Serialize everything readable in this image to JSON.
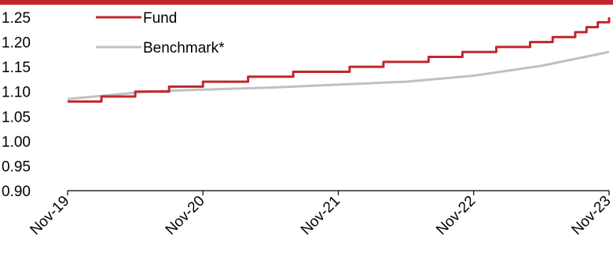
{
  "chart_data": {
    "type": "line",
    "title": "",
    "xlabel": "",
    "ylabel": "",
    "ylim": [
      0.9,
      1.25
    ],
    "xlim": [
      "2019-11",
      "2023-11"
    ],
    "y_ticks": [
      "0.90",
      "0.95",
      "1.00",
      "1.05",
      "1.10",
      "1.15",
      "1.20",
      "1.25"
    ],
    "x_ticks": [
      {
        "date": "2019-11",
        "label": "Nov-19"
      },
      {
        "date": "2020-11",
        "label": "Nov-20"
      },
      {
        "date": "2021-11",
        "label": "Nov-21"
      },
      {
        "date": "2022-11",
        "label": "Nov-22"
      },
      {
        "date": "2023-11",
        "label": "Nov-23"
      }
    ],
    "grid": false,
    "legend_position": "top-left",
    "series": [
      {
        "name": "Fund",
        "color": "#c0272d",
        "style": "step",
        "points": [
          [
            "2019-11",
            1.08
          ],
          [
            "2020-02",
            1.09
          ],
          [
            "2020-05",
            1.1
          ],
          [
            "2020-08",
            1.11
          ],
          [
            "2020-11",
            1.12
          ],
          [
            "2021-03",
            1.13
          ],
          [
            "2021-07",
            1.14
          ],
          [
            "2021-12",
            1.15
          ],
          [
            "2022-03",
            1.16
          ],
          [
            "2022-07",
            1.17
          ],
          [
            "2022-10",
            1.18
          ],
          [
            "2023-01",
            1.19
          ],
          [
            "2023-04",
            1.2
          ],
          [
            "2023-06",
            1.21
          ],
          [
            "2023-08",
            1.22
          ],
          [
            "2023-09",
            1.23
          ],
          [
            "2023-10",
            1.24
          ],
          [
            "2023-11",
            1.25
          ]
        ]
      },
      {
        "name": "Benchmark*",
        "color": "#c0c0c0",
        "style": "line",
        "points": [
          [
            "2019-11",
            1.085
          ],
          [
            "2020-06",
            1.1
          ],
          [
            "2020-11",
            1.104
          ],
          [
            "2021-05",
            1.108
          ],
          [
            "2021-11",
            1.114
          ],
          [
            "2022-05",
            1.12
          ],
          [
            "2022-11",
            1.132
          ],
          [
            "2023-05",
            1.152
          ],
          [
            "2023-11",
            1.18
          ]
        ]
      }
    ]
  }
}
